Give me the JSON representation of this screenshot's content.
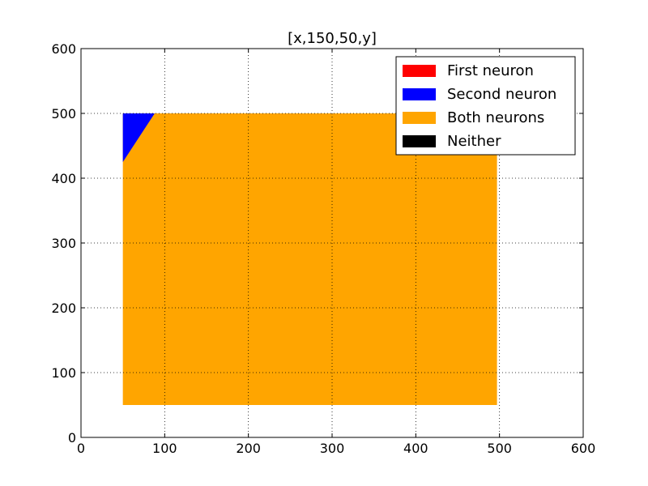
{
  "chart_data": {
    "type": "scatter",
    "title": "[x,150,50,y]",
    "xlabel": "",
    "ylabel": "",
    "xlim": [
      0,
      600
    ],
    "ylim": [
      0,
      600
    ],
    "xticks": [
      0,
      100,
      200,
      300,
      400,
      500,
      600
    ],
    "yticks": [
      0,
      100,
      200,
      300,
      400,
      500,
      600
    ],
    "grid": true,
    "legend_position": "top-right",
    "series": [
      {
        "name": "First neuron",
        "color": "#ff0000",
        "regions": []
      },
      {
        "name": "Second neuron",
        "color": "#0000ff",
        "regions": [
          {
            "shape": "triangle",
            "vertices": [
              [
                50,
                425
              ],
              [
                50,
                500
              ],
              [
                88,
                500
              ]
            ]
          }
        ]
      },
      {
        "name": "Both neurons",
        "color": "#ffa500",
        "regions": [
          {
            "shape": "rectangle",
            "x": [
              50,
              497
            ],
            "y": [
              50,
              500
            ]
          }
        ]
      },
      {
        "name": "Neither",
        "color": "#000000",
        "regions": []
      }
    ]
  }
}
